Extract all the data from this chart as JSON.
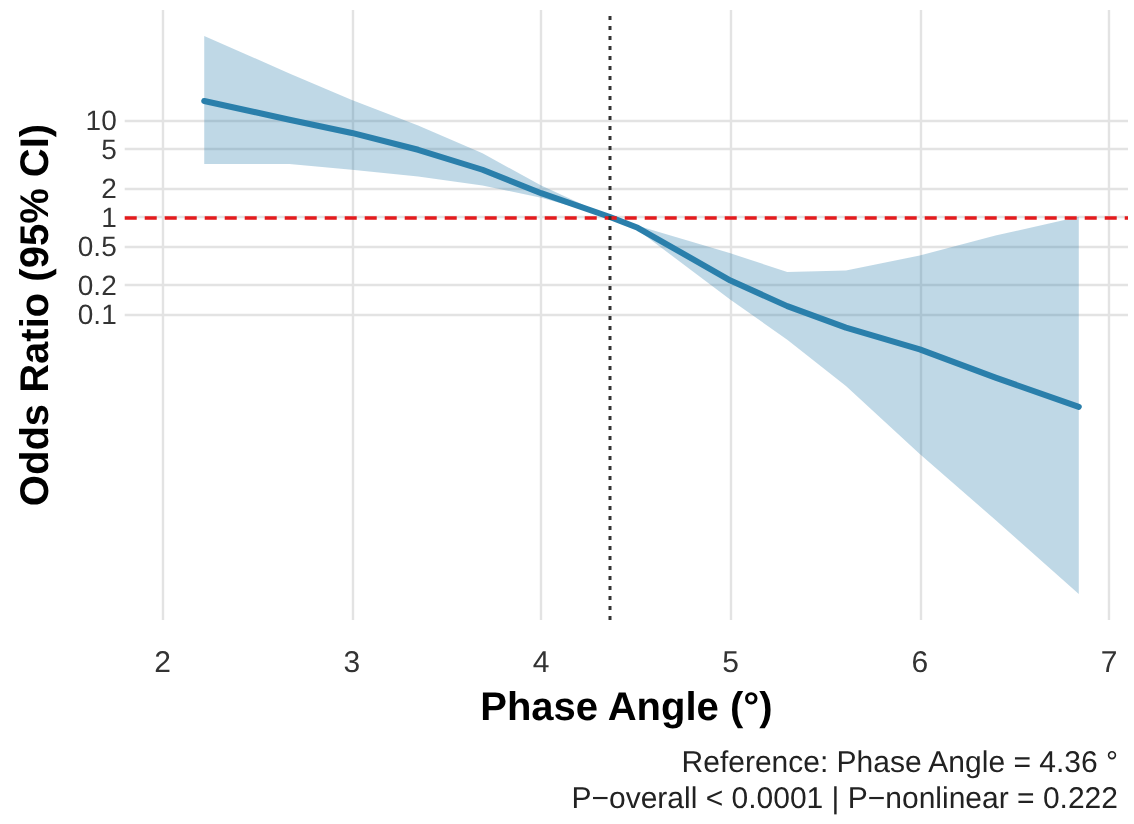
{
  "chart_data": {
    "type": "line",
    "xlabel": "Phase Angle (°)",
    "ylabel": "Odds Ratio (95% CI)",
    "annotations": [
      "Reference: Phase Angle = 4.36 °",
      "P−overall < 0.0001 | P−nonlinear = 0.222"
    ],
    "x": [
      2.22,
      2.67,
      3.0,
      3.35,
      3.69,
      4.0,
      4.36,
      4.51,
      5.0,
      5.3,
      5.61,
      6.0,
      6.4,
      6.84
    ],
    "series": [
      {
        "color": "#2a7fab",
        "values": [
          15.6,
          10.0,
          7.3,
          4.9,
          3.05,
          1.75,
          1.0,
          0.77,
          0.22,
          0.12,
          0.072,
          0.043,
          0.022,
          0.011
        ],
        "upper": [
          73,
          30,
          16,
          8.7,
          4.5,
          2.1,
          1.0,
          0.81,
          0.42,
          0.27,
          0.28,
          0.4,
          0.64,
          1.0
        ],
        "lower": [
          3.5,
          3.5,
          3.05,
          2.6,
          2.1,
          1.57,
          1.0,
          0.73,
          0.14,
          0.054,
          0.018,
          0.0036,
          0.00075,
          0.00013
        ]
      }
    ],
    "log": "y",
    "xlim": [
      1.8,
      7.1
    ],
    "xticks": [
      2,
      3,
      4,
      5,
      6,
      7
    ],
    "ylim": [
      7e-05,
      135
    ],
    "yticks": [
      0.1,
      0.2,
      0.5,
      1,
      2,
      5,
      10
    ],
    "grid": true,
    "marker": "none",
    "line_style": "solid",
    "ref_lines": [
      {
        "axis": "y",
        "value": 1,
        "color": "#e41a1c",
        "line_style": "dashed"
      },
      {
        "axis": "x",
        "value": 4.36,
        "color": "#333333",
        "line_style": "dotted"
      }
    ]
  }
}
